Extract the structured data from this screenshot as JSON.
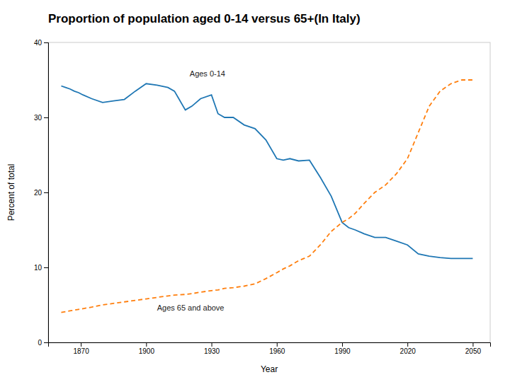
{
  "chart_data": {
    "type": "line",
    "title": "Proportion of population aged 0-14 versus 65+(In Italy)",
    "xlabel": "Year",
    "ylabel": "Percent of total",
    "x": [
      1861,
      1863,
      1865,
      1867,
      1869,
      1871,
      1875,
      1880,
      1885,
      1890,
      1895,
      1900,
      1905,
      1910,
      1913,
      1918,
      1921,
      1925,
      1930,
      1933,
      1936,
      1940,
      1945,
      1950,
      1955,
      1960,
      1963,
      1966,
      1970,
      1975,
      1980,
      1985,
      1990,
      1993,
      1996,
      2000,
      2005,
      2010,
      2015,
      2020,
      2025,
      2030,
      2035,
      2040,
      2045,
      2050
    ],
    "series": [
      {
        "line_style": "solid",
        "values": [
          34.2,
          34.0,
          33.8,
          33.5,
          33.3,
          33.0,
          32.5,
          32.0,
          32.2,
          32.4,
          33.5,
          34.5,
          34.3,
          34.0,
          33.5,
          31.0,
          31.5,
          32.5,
          33.0,
          30.5,
          30.0,
          30.0,
          29.0,
          28.5,
          27.0,
          24.5,
          24.3,
          24.5,
          24.2,
          24.3,
          22.0,
          19.5,
          16.0,
          15.3,
          15.0,
          14.5,
          14.0,
          14.0,
          13.5,
          13.0,
          11.8,
          11.5,
          11.3,
          11.2,
          11.2,
          11.2
        ]
      },
      {
        "line_style": "dashed",
        "values": [
          4.0,
          4.1,
          4.2,
          4.3,
          4.4,
          4.5,
          4.7,
          5.0,
          5.2,
          5.4,
          5.6,
          5.8,
          6.0,
          6.2,
          6.3,
          6.4,
          6.5,
          6.7,
          6.9,
          7.0,
          7.2,
          7.3,
          7.5,
          7.8,
          8.5,
          9.3,
          9.8,
          10.2,
          10.9,
          11.5,
          13.0,
          14.8,
          16.0,
          16.5,
          17.2,
          18.5,
          20.0,
          21.0,
          22.5,
          24.5,
          28.0,
          31.5,
          33.5,
          34.5,
          35.0,
          35.0
        ]
      }
    ],
    "annotations": [
      {
        "text": "Ages 0-14",
        "x": 1920,
        "y": 35.5
      },
      {
        "text": "Ages 65 and above",
        "x": 1905,
        "y": 4.2
      }
    ],
    "xlim": [
      1855,
      2058
    ],
    "xticks": [
      1870,
      1900,
      1930,
      1960,
      1990,
      2020,
      2050
    ],
    "ylim": [
      0,
      40
    ],
    "yticks": [
      0,
      10,
      20,
      30,
      40
    ],
    "grid": false
  }
}
